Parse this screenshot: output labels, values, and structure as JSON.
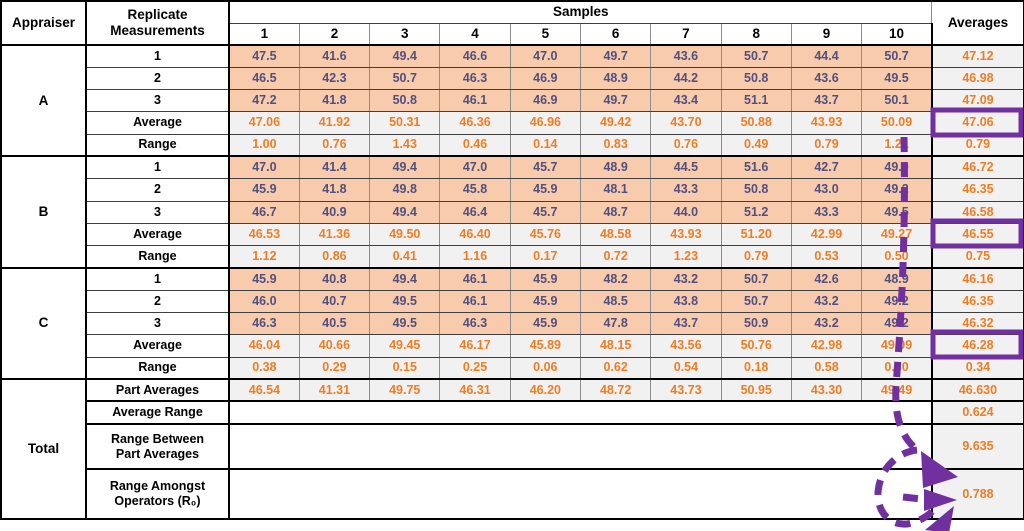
{
  "page": {
    "background": "#FFFFFF"
  },
  "colors": {
    "measurement_cell_fill": "#F8CBAD",
    "stat_cell_fill": "#F1F1F1",
    "measurement_text": "#50507E",
    "stat_text": "#EF7D22",
    "label_text": "#000000",
    "annotation_purple": "#7030A0",
    "thin_row_line": "#3F3F3F",
    "thin_column_line": "#8D8D8D",
    "section_border": "#000000"
  },
  "annotation": {
    "name": "purple-dashed-arrow",
    "boxed_average_values": [
      "47.06",
      "46.55",
      "46.28"
    ],
    "arrow_points_to": "0.788",
    "color": "#7030A0"
  },
  "chart_data": {
    "type": "table",
    "header": {
      "appraiser": "Appraiser",
      "replicate": [
        "Replicate",
        "Measurements"
      ],
      "samples_label": "Samples",
      "sample_numbers": [
        "1",
        "2",
        "3",
        "4",
        "5",
        "6",
        "7",
        "8",
        "9",
        "10"
      ],
      "averages_label": "Averages"
    },
    "appraiser_sections": [
      {
        "appraiser": "A",
        "trials": [
          {
            "label": "1",
            "values": [
              "47.5",
              "41.6",
              "49.4",
              "46.6",
              "47.0",
              "49.7",
              "43.6",
              "50.7",
              "44.4",
              "50.7"
            ],
            "average": "47.12"
          },
          {
            "label": "2",
            "values": [
              "46.5",
              "42.3",
              "50.7",
              "46.3",
              "46.9",
              "48.9",
              "44.2",
              "50.8",
              "43.6",
              "49.5"
            ],
            "average": "46.98"
          },
          {
            "label": "3",
            "values": [
              "47.2",
              "41.8",
              "50.8",
              "46.1",
              "46.9",
              "49.7",
              "43.4",
              "51.1",
              "43.7",
              "50.1"
            ],
            "average": "47.09"
          }
        ],
        "average_row": {
          "label": "Average",
          "values": [
            "47.06",
            "41.92",
            "50.31",
            "46.36",
            "46.96",
            "49.42",
            "43.70",
            "50.88",
            "43.93",
            "50.09"
          ],
          "average": "47.06",
          "boxed": true
        },
        "range_row": {
          "label": "Range",
          "values": [
            "1.00",
            "0.76",
            "1.43",
            "0.46",
            "0.14",
            "0.83",
            "0.76",
            "0.49",
            "0.79",
            "1.21"
          ],
          "average": "0.79"
        }
      },
      {
        "appraiser": "B",
        "trials": [
          {
            "label": "1",
            "values": [
              "47.0",
              "41.4",
              "49.4",
              "47.0",
              "45.7",
              "48.9",
              "44.5",
              "51.6",
              "42.7",
              "49.0"
            ],
            "average": "46.72"
          },
          {
            "label": "2",
            "values": [
              "45.9",
              "41.8",
              "49.8",
              "45.8",
              "45.9",
              "48.1",
              "43.3",
              "50.8",
              "43.0",
              "49.2"
            ],
            "average": "46.35"
          },
          {
            "label": "3",
            "values": [
              "46.7",
              "40.9",
              "49.4",
              "46.4",
              "45.7",
              "48.7",
              "44.0",
              "51.2",
              "43.3",
              "49.5"
            ],
            "average": "46.58"
          }
        ],
        "average_row": {
          "label": "Average",
          "values": [
            "46.53",
            "41.36",
            "49.50",
            "46.40",
            "45.76",
            "48.58",
            "43.93",
            "51.20",
            "42.99",
            "49.27"
          ],
          "average": "46.55",
          "boxed": true
        },
        "range_row": {
          "label": "Range",
          "values": [
            "1.12",
            "0.86",
            "0.41",
            "1.16",
            "0.17",
            "0.72",
            "1.23",
            "0.79",
            "0.53",
            "0.50"
          ],
          "average": "0.75"
        }
      },
      {
        "appraiser": "C",
        "trials": [
          {
            "label": "1",
            "values": [
              "45.9",
              "40.8",
              "49.4",
              "46.1",
              "45.9",
              "48.2",
              "43.2",
              "50.7",
              "42.6",
              "48.9"
            ],
            "average": "46.16"
          },
          {
            "label": "2",
            "values": [
              "46.0",
              "40.7",
              "49.5",
              "46.1",
              "45.9",
              "48.5",
              "43.8",
              "50.7",
              "43.2",
              "49.2"
            ],
            "average": "46.35"
          },
          {
            "label": "3",
            "values": [
              "46.3",
              "40.5",
              "49.5",
              "46.3",
              "45.9",
              "47.8",
              "43.7",
              "50.9",
              "43.2",
              "49.2"
            ],
            "average": "46.32"
          }
        ],
        "average_row": {
          "label": "Average",
          "values": [
            "46.04",
            "40.66",
            "49.45",
            "46.17",
            "45.89",
            "48.15",
            "43.56",
            "50.76",
            "42.98",
            "49.09"
          ],
          "average": "46.28",
          "boxed": true
        },
        "range_row": {
          "label": "Range",
          "values": [
            "0.38",
            "0.29",
            "0.15",
            "0.25",
            "0.06",
            "0.62",
            "0.54",
            "0.18",
            "0.58",
            "0.30"
          ],
          "average": "0.34"
        }
      }
    ],
    "total_section": {
      "label": "Total",
      "rows": [
        {
          "label": "Part Averages",
          "values": [
            "46.54",
            "41.31",
            "49.75",
            "46.31",
            "46.20",
            "48.72",
            "43.73",
            "50.95",
            "43.30",
            "49.49"
          ],
          "average": "46.630"
        },
        {
          "label": "Average Range",
          "average": "0.624"
        },
        {
          "label": [
            "Range Between",
            "Part Averages"
          ],
          "average": "9.635"
        },
        {
          "label": [
            "Range Amongst",
            "Operators (R₀)"
          ],
          "average": "0.788"
        }
      ]
    }
  }
}
